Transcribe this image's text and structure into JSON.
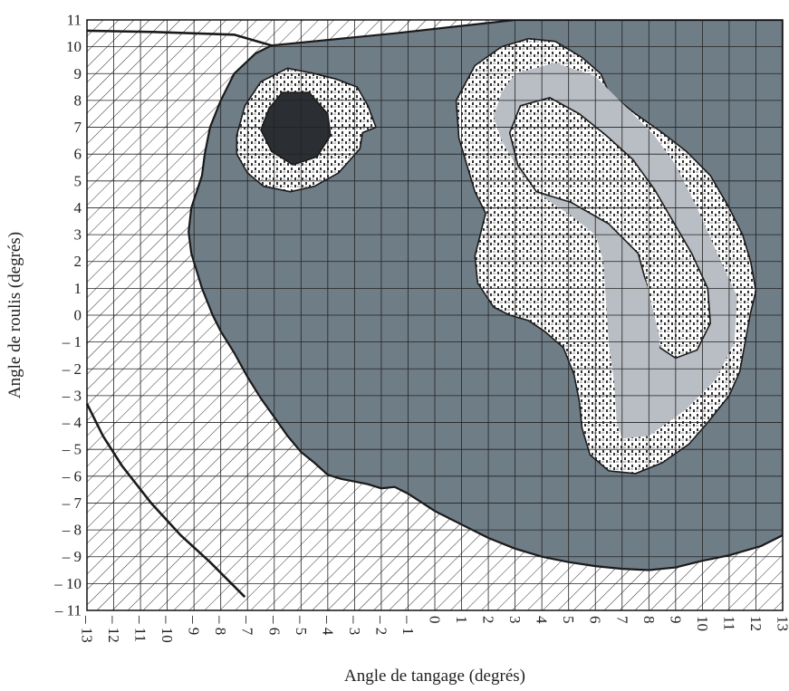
{
  "chart_data": {
    "type": "area",
    "xlabel": "Angle de tangage (degrés)",
    "ylabel": "Angle de roulis (degrés)",
    "xlim": [
      -13,
      13
    ],
    "ylim": [
      -11,
      11
    ],
    "grid": true,
    "x_ticks": [
      -13,
      -12,
      -11,
      -10,
      -9,
      -8,
      -7,
      -6,
      -5,
      -4,
      -3,
      -2,
      -1,
      0,
      1,
      2,
      3,
      4,
      5,
      6,
      7,
      8,
      9,
      10,
      11,
      12,
      13
    ],
    "y_ticks": [
      11,
      10,
      9,
      8,
      7,
      6,
      5,
      4,
      3,
      2,
      1,
      0,
      -1,
      -2,
      -3,
      -4,
      -5,
      -6,
      -7,
      -8,
      -9,
      -10,
      -11
    ],
    "x_tick_labels": [
      "– 13",
      "– 12",
      "– 11",
      "– 10",
      "– 9",
      "– 8",
      "– 7",
      "– 6",
      "– 5",
      "– 4",
      "– 3",
      "– 2",
      "– 1",
      "0",
      "1",
      "2",
      "3",
      "4",
      "5",
      "6",
      "7",
      "8",
      "9",
      "10",
      "11",
      "12",
      "13"
    ],
    "y_tick_labels": [
      "11",
      "10",
      "9",
      "8",
      "7",
      "6",
      "5",
      "4",
      "3",
      "2",
      "1",
      "0",
      "– 1",
      "– 2",
      "– 3",
      "– 4",
      "– 5",
      "– 6",
      "– 7",
      "– 8",
      "– 9",
      "– 10",
      "– 11"
    ],
    "colors": {
      "dark_region": "#6f7d87",
      "dot_pattern": "#ffffff",
      "light_band": "#b9bec4",
      "core": "#2b2f33",
      "grid": "#222222",
      "hatch": "#333333"
    },
    "regions": [
      {
        "fill": "dark",
        "points": [
          [
            -6.1,
            10.05
          ],
          [
            -1.5,
            10.5
          ],
          [
            3,
            11
          ],
          [
            13,
            11
          ],
          [
            13,
            -8.2
          ],
          [
            12.2,
            -8.6
          ],
          [
            11,
            -8.95
          ],
          [
            10,
            -9.15
          ],
          [
            9,
            -9.4
          ],
          [
            8,
            -9.5
          ],
          [
            7,
            -9.45
          ],
          [
            6,
            -9.35
          ],
          [
            5,
            -9.2
          ],
          [
            4,
            -9.0
          ],
          [
            3,
            -8.7
          ],
          [
            2,
            -8.3
          ],
          [
            1,
            -7.8
          ],
          [
            0,
            -7.3
          ],
          [
            -1,
            -6.65
          ],
          [
            -1.5,
            -6.4
          ],
          [
            -2,
            -6.45
          ],
          [
            -2.5,
            -6.3
          ],
          [
            -3,
            -6.2
          ],
          [
            -3.5,
            -6.1
          ],
          [
            -4,
            -5.95
          ],
          [
            -4.5,
            -5.5
          ],
          [
            -5,
            -5.1
          ],
          [
            -5.5,
            -4.5
          ],
          [
            -6,
            -3.8
          ],
          [
            -6.5,
            -3.1
          ],
          [
            -7,
            -2.3
          ],
          [
            -7.5,
            -1.4
          ],
          [
            -8,
            -0.6
          ],
          [
            -8.3,
            0
          ],
          [
            -8.7,
            1.0
          ],
          [
            -9.1,
            2.3
          ],
          [
            -9.2,
            3.1
          ],
          [
            -9.1,
            4.0
          ],
          [
            -8.9,
            4.6
          ],
          [
            -8.7,
            5.2
          ],
          [
            -8.6,
            6.0
          ],
          [
            -8.4,
            7.0
          ],
          [
            -8.0,
            8.0
          ],
          [
            -7.5,
            9.0
          ],
          [
            -6.7,
            9.75
          ]
        ]
      },
      {
        "fill": "dots",
        "points": [
          [
            -7.4,
            6.7
          ],
          [
            -7.1,
            7.8
          ],
          [
            -6.5,
            8.7
          ],
          [
            -5.5,
            9.2
          ],
          [
            -4.5,
            9.0
          ],
          [
            -3.7,
            8.8
          ],
          [
            -2.9,
            8.5
          ],
          [
            -2.5,
            7.8
          ],
          [
            -2.2,
            7.0
          ],
          [
            -2.7,
            6.8
          ],
          [
            -2.8,
            6.2
          ],
          [
            -3.6,
            5.3
          ],
          [
            -4.5,
            4.8
          ],
          [
            -5.4,
            4.6
          ],
          [
            -6.4,
            4.8
          ],
          [
            -7.0,
            5.3
          ],
          [
            -7.4,
            6.0
          ]
        ]
      },
      {
        "fill": "core",
        "points": [
          [
            -5.7,
            8.3
          ],
          [
            -4.7,
            8.3
          ],
          [
            -4.0,
            7.5
          ],
          [
            -3.9,
            6.7
          ],
          [
            -4.4,
            5.9
          ],
          [
            -5.3,
            5.6
          ],
          [
            -6.1,
            6.1
          ],
          [
            -6.5,
            6.9
          ],
          [
            -6.2,
            7.7
          ]
        ]
      },
      {
        "fill": "dots",
        "points": [
          [
            0.8,
            8.0
          ],
          [
            1.5,
            9.3
          ],
          [
            2.5,
            10.0
          ],
          [
            3.5,
            10.3
          ],
          [
            4.5,
            10.2
          ],
          [
            5.5,
            9.6
          ],
          [
            6.2,
            9.0
          ],
          [
            6.5,
            8.3
          ],
          [
            7.5,
            7.5
          ],
          [
            8.5,
            6.8
          ],
          [
            9.4,
            6.1
          ],
          [
            10.3,
            5.2
          ],
          [
            11.0,
            4.0
          ],
          [
            11.5,
            3.0
          ],
          [
            11.8,
            2.0
          ],
          [
            12.0,
            0.9
          ],
          [
            11.8,
            0.1
          ],
          [
            11.6,
            -1.0
          ],
          [
            11.4,
            -2.1
          ],
          [
            11.0,
            -3.0
          ],
          [
            10.2,
            -4.0
          ],
          [
            9.5,
            -4.8
          ],
          [
            8.5,
            -5.5
          ],
          [
            7.5,
            -5.9
          ],
          [
            6.5,
            -5.8
          ],
          [
            5.8,
            -5.2
          ],
          [
            5.5,
            -4.2
          ],
          [
            5.4,
            -3.2
          ],
          [
            5.2,
            -2.2
          ],
          [
            4.8,
            -1.2
          ],
          [
            4.1,
            -0.6
          ],
          [
            3.5,
            -0.2
          ],
          [
            2.8,
            0
          ],
          [
            2.2,
            0.3
          ],
          [
            1.6,
            1.2
          ],
          [
            1.5,
            2.2
          ],
          [
            1.7,
            3.0
          ],
          [
            1.9,
            3.8
          ],
          [
            1.5,
            4.6
          ],
          [
            1.2,
            5.6
          ],
          [
            0.9,
            6.6
          ]
        ]
      },
      {
        "fill": "band",
        "points": [
          [
            3.0,
            9.0
          ],
          [
            4.5,
            9.4
          ],
          [
            6.0,
            8.9
          ],
          [
            7.2,
            7.7
          ],
          [
            8.2,
            6.7
          ],
          [
            9.0,
            5.6
          ],
          [
            9.8,
            4.0
          ],
          [
            10.6,
            2.2
          ],
          [
            11.3,
            0.7
          ],
          [
            11.2,
            -1.0
          ],
          [
            10.5,
            -2.4
          ],
          [
            9.4,
            -3.5
          ],
          [
            8.0,
            -4.5
          ],
          [
            7.0,
            -4.6
          ],
          [
            6.8,
            -4.0
          ],
          [
            6.7,
            -2.5
          ],
          [
            6.5,
            -1.0
          ],
          [
            6.4,
            0.5
          ],
          [
            6.3,
            2.0
          ],
          [
            6.0,
            3.0
          ],
          [
            5.1,
            3.7
          ],
          [
            4.2,
            4.3
          ],
          [
            3.2,
            5.3
          ],
          [
            2.5,
            6.5
          ],
          [
            2.2,
            7.4
          ],
          [
            2.5,
            8.3
          ]
        ]
      },
      {
        "fill": "dots",
        "points": [
          [
            3.2,
            7.8
          ],
          [
            4.3,
            8.1
          ],
          [
            5.4,
            7.5
          ],
          [
            6.4,
            6.7
          ],
          [
            7.4,
            5.8
          ],
          [
            8.2,
            4.7
          ],
          [
            8.9,
            3.5
          ],
          [
            9.6,
            2.3
          ],
          [
            10.2,
            1.0
          ],
          [
            10.3,
            -0.3
          ],
          [
            9.8,
            -1.3
          ],
          [
            9.0,
            -1.6
          ],
          [
            8.4,
            -1.2
          ],
          [
            8.1,
            0.0
          ],
          [
            7.9,
            1.2
          ],
          [
            7.6,
            2.3
          ],
          [
            6.5,
            3.4
          ],
          [
            5.1,
            4.2
          ],
          [
            3.8,
            4.6
          ],
          [
            3.1,
            5.6
          ],
          [
            2.8,
            6.8
          ]
        ]
      },
      {
        "fill": "band",
        "points": [
          [
            7.4,
            -4.2
          ],
          [
            8.4,
            -2.8
          ],
          [
            8.4,
            -0.8
          ],
          [
            7.9,
            1.2
          ],
          [
            7.4,
            2.4
          ],
          [
            7.1,
            1.5
          ],
          [
            7.2,
            0
          ],
          [
            7.1,
            -1.5
          ],
          [
            7.1,
            -3.0
          ]
        ]
      }
    ],
    "boundaries": [
      [
        [
          -13,
          10.6
        ],
        [
          -10.5,
          10.55
        ],
        [
          -7.5,
          10.45
        ],
        [
          -6.1,
          10.05
        ]
      ],
      [
        [
          -13,
          -3.3
        ],
        [
          -12.4,
          -4.5
        ],
        [
          -11.7,
          -5.6
        ],
        [
          -10.6,
          -7.0
        ],
        [
          -9.5,
          -8.2
        ],
        [
          -8.4,
          -9.2
        ],
        [
          -7.1,
          -10.5
        ]
      ]
    ]
  }
}
